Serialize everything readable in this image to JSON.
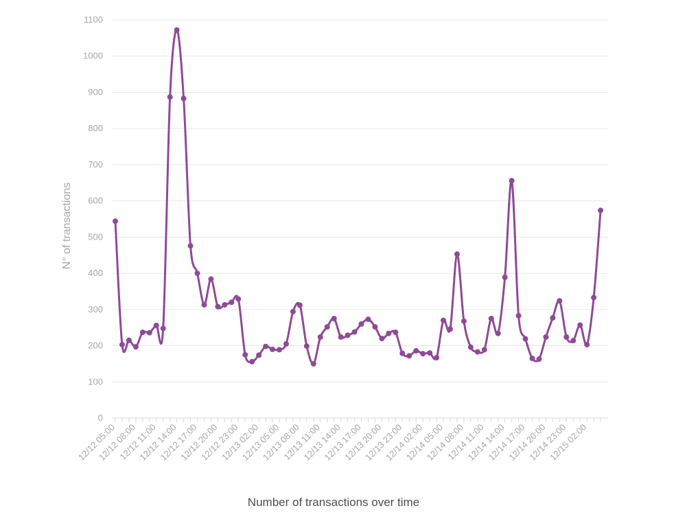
{
  "chart_data": {
    "type": "line",
    "title": "",
    "xlabel": "Number of transactions over time",
    "ylabel": "N° of transactions",
    "ylim": [
      0,
      1100
    ],
    "yticks": [
      0,
      100,
      200,
      300,
      400,
      500,
      600,
      700,
      800,
      900,
      1000,
      1100
    ],
    "grid": true,
    "legend": "none",
    "color": "#8e4a97",
    "x_tick_labels": [
      "12/12 05:00",
      "12/12 08:00",
      "12/12 11:00",
      "12/12 14:00",
      "12/12 17:00",
      "12/12 20:00",
      "12/12 23:00",
      "12/13 02:00",
      "12/13 05:00",
      "12/13 08:00",
      "12/13 11:00",
      "12/13 14:00",
      "12/13 17:00",
      "12/13 20:00",
      "12/13 23:00",
      "12/14 02:00",
      "12/14 05:00",
      "12/14 08:00",
      "12/14 11:00",
      "12/14 14:00",
      "12/14 17:00",
      "12/14 20:00",
      "12/14 23:00",
      "12/15 02:00"
    ],
    "series": [
      {
        "values": [
          544,
          203,
          215,
          197,
          237,
          236,
          256,
          248,
          887,
          1072,
          883,
          476,
          400,
          313,
          384,
          308,
          313,
          320,
          329,
          175,
          156,
          174,
          198,
          190,
          189,
          205,
          294,
          312,
          199,
          150,
          224,
          252,
          275,
          224,
          229,
          238,
          260,
          273,
          252,
          220,
          234,
          237,
          179,
          172,
          186,
          178,
          180,
          167,
          270,
          246,
          453,
          268,
          196,
          183,
          189,
          275,
          234,
          389,
          656,
          283,
          219,
          165,
          163,
          224,
          277,
          324,
          224,
          214,
          257,
          203,
          333,
          574
        ]
      }
    ]
  }
}
